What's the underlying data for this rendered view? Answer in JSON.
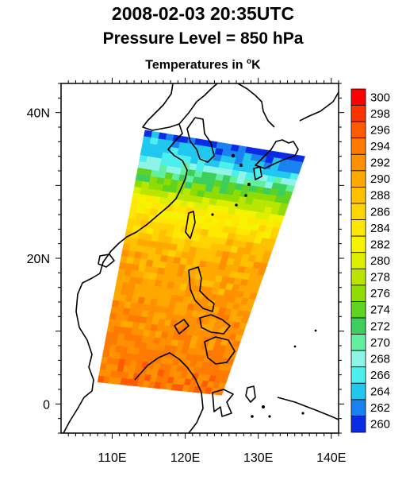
{
  "title": "2008-02-03 20:35UTC",
  "subtitle": "Pressure Level = 850 hPa",
  "variable_label": "Temperatures in ",
  "variable_unit_sup": "o",
  "variable_unit": "K",
  "map": {
    "lon_range": [
      103,
      141
    ],
    "lat_range": [
      -4,
      44
    ],
    "lon_ticks": [
      {
        "value": 110,
        "label": "110E"
      },
      {
        "value": 120,
        "label": "120E"
      },
      {
        "value": 130,
        "label": "130E"
      },
      {
        "value": 140,
        "label": "140E"
      }
    ],
    "lat_ticks": [
      {
        "value": 0,
        "label": "0"
      },
      {
        "value": 20,
        "label": "20N"
      },
      {
        "value": 40,
        "label": "40N"
      }
    ],
    "swath_corners": {
      "nw": [
        114.5,
        37.6
      ],
      "ne": [
        136.4,
        34.0
      ],
      "se": [
        125.0,
        1.2
      ],
      "sw": [
        108.0,
        3.0
      ]
    }
  },
  "colorbar": {
    "labels": [
      "300",
      "298",
      "296",
      "294",
      "292",
      "290",
      "288",
      "286",
      "284",
      "282",
      "280",
      "278",
      "276",
      "274",
      "272",
      "270",
      "268",
      "266",
      "264",
      "262",
      "260"
    ],
    "colors": [
      "#ff0000",
      "#ff3300",
      "#ff5a00",
      "#ff7a00",
      "#ff9000",
      "#ffa800",
      "#ffc000",
      "#ffd400",
      "#ffe800",
      "#f6f300",
      "#dcef00",
      "#b8e600",
      "#8fdc00",
      "#5fd320",
      "#3dcf5c",
      "#62f0a0",
      "#8ff4e8",
      "#4deeee",
      "#20c8f0",
      "#1a82f0",
      "#0a2be6"
    ]
  }
}
